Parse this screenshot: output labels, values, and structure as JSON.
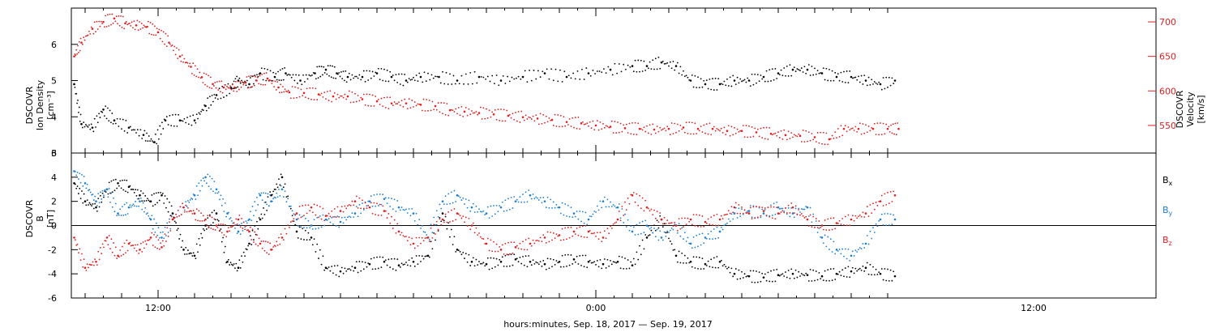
{
  "chart_data": [
    {
      "type": "scatter",
      "panel": "top",
      "y_label_lines": [
        "DSCOVR",
        "Ion Density",
        "[cm⁻³]"
      ],
      "y2_label_lines": [
        "DSCOVR",
        "Velocity",
        "[km/s]"
      ],
      "ylim": [
        3,
        7
      ],
      "y_ticks": [
        3,
        4,
        5,
        6
      ],
      "y2lim": [
        510,
        720
      ],
      "y2_ticks": [
        550,
        600,
        650,
        700
      ],
      "grid": false,
      "legend": "none",
      "series": [
        {
          "axis": "left",
          "color": "#000000",
          "x": [
            9.7,
            9.9,
            10.2,
            10.5,
            10.8,
            11.2,
            11.6,
            11.9,
            12.2,
            12.6,
            13.0,
            13.3,
            13.6,
            14.0,
            14.2,
            14.5,
            14.8,
            15.2,
            15.5,
            15.9,
            16.3,
            16.6,
            16.9,
            17.2,
            17.6,
            18.0,
            18.4,
            18.8,
            19.2,
            19.7,
            20.2,
            20.8,
            21.4,
            22.0,
            22.6,
            23.2,
            23.8,
            0.4,
            1.0,
            1.4,
            1.8,
            2.2,
            2.6,
            3.0,
            3.4,
            3.8,
            4.2,
            4.6,
            5.0,
            5.4,
            5.8,
            6.2,
            6.6,
            7.0,
            7.4,
            7.8,
            8.2
          ],
          "values": [
            4.9,
            3.8,
            3.7,
            4.2,
            3.9,
            3.7,
            3.5,
            3.3,
            3.9,
            3.9,
            3.9,
            4.3,
            4.6,
            4.8,
            5.0,
            4.9,
            5.2,
            5.1,
            5.2,
            5.0,
            5.2,
            5.3,
            5.2,
            5.1,
            5.1,
            5.2,
            5.1,
            5.0,
            5.1,
            5.1,
            5.0,
            5.1,
            5.0,
            5.1,
            5.2,
            5.1,
            5.2,
            5.3,
            5.4,
            5.4,
            5.5,
            5.4,
            5.0,
            4.9,
            4.9,
            5.0,
            5.0,
            5.1,
            5.2,
            5.3,
            5.3,
            5.2,
            5.1,
            5.1,
            5.0,
            4.9,
            5.0
          ]
        },
        {
          "axis": "right",
          "color": "#e02020",
          "x": [
            9.7,
            9.9,
            10.2,
            10.5,
            10.8,
            11.1,
            11.4,
            11.7,
            12.0,
            12.3,
            12.6,
            12.9,
            13.2,
            13.5,
            13.8,
            14.1,
            14.4,
            14.7,
            15.0,
            15.3,
            15.6,
            16.0,
            16.4,
            16.8,
            17.2,
            17.6,
            18.0,
            18.4,
            18.8,
            19.2,
            19.6,
            20.0,
            20.4,
            20.8,
            21.2,
            21.6,
            22.0,
            22.4,
            22.8,
            23.2,
            23.6,
            0.0,
            0.4,
            0.8,
            1.2,
            1.6,
            2.0,
            2.4,
            2.8,
            3.2,
            3.6,
            4.0,
            4.4,
            4.8,
            5.2,
            5.6,
            6.0,
            6.4,
            6.8,
            7.2,
            7.6,
            8.0,
            8.3
          ],
          "values": [
            650,
            670,
            690,
            700,
            705,
            698,
            695,
            693,
            685,
            670,
            650,
            635,
            620,
            610,
            605,
            605,
            612,
            615,
            618,
            605,
            598,
            597,
            595,
            592,
            592,
            588,
            585,
            582,
            582,
            580,
            578,
            572,
            570,
            568,
            566,
            564,
            562,
            560,
            558,
            555,
            553,
            550,
            548,
            546,
            545,
            544,
            545,
            547,
            545,
            545,
            542,
            542,
            540,
            538,
            536,
            535,
            533,
            530,
            545,
            545,
            545,
            545,
            545
          ]
        }
      ]
    },
    {
      "type": "scatter",
      "panel": "bottom",
      "y_label_lines": [
        "DSCOVR",
        "B",
        "[nT]"
      ],
      "ylim": [
        -6,
        6
      ],
      "y_ticks": [
        -6,
        -4,
        -2,
        0,
        2,
        4,
        6
      ],
      "zero_line": true,
      "grid": false,
      "legend": "right",
      "series": [
        {
          "name": "B",
          "subscript": "x",
          "color": "#000000",
          "x": [
            9.7,
            10.0,
            10.3,
            10.6,
            10.9,
            11.2,
            11.5,
            11.8,
            12.1,
            12.4,
            12.7,
            13.0,
            13.3,
            13.6,
            13.9,
            14.2,
            14.5,
            14.8,
            15.1,
            15.4,
            15.8,
            16.2,
            16.6,
            17.0,
            17.4,
            17.8,
            18.2,
            18.6,
            19.0,
            19.4,
            19.8,
            20.2,
            20.6,
            21.0,
            21.4,
            21.8,
            22.2,
            22.6,
            23.0,
            23.4,
            23.8,
            0.2,
            0.6,
            1.0,
            1.4,
            1.8,
            2.2,
            2.6,
            3.0,
            3.4,
            3.8,
            4.2,
            4.6,
            5.0,
            5.4,
            5.8,
            6.2,
            6.6,
            7.0,
            7.4,
            7.8,
            8.2
          ],
          "values": [
            3.5,
            2.0,
            1.5,
            3.0,
            3.5,
            3.2,
            2.5,
            2.0,
            2.5,
            1.0,
            -2.0,
            -2.5,
            0.0,
            1.0,
            -3.0,
            -3.5,
            -1.5,
            0.5,
            2.5,
            4.0,
            -0.5,
            -1.0,
            -3.5,
            -3.8,
            -3.5,
            -3.2,
            -3.0,
            -3.3,
            -3.0,
            -2.5,
            1.0,
            -2.0,
            -3.0,
            -3.2,
            -3.0,
            -2.8,
            -3.0,
            -3.2,
            -3.0,
            -2.8,
            -3.0,
            -3.2,
            -3.0,
            -3.3,
            -1.0,
            0.5,
            -2.5,
            -3.0,
            -3.2,
            -3.0,
            -4.0,
            -4.2,
            -4.3,
            -4.1,
            -4.0,
            -4.1,
            -4.2,
            -4.0,
            -3.8,
            -3.5,
            -4.0,
            -4.2
          ]
        },
        {
          "name": "B",
          "subscript": "y",
          "color": "#1a7fd4",
          "x": [
            9.7,
            10.0,
            10.3,
            10.6,
            10.9,
            11.2,
            11.5,
            11.8,
            12.1,
            12.4,
            12.7,
            13.0,
            13.3,
            13.6,
            13.9,
            14.2,
            14.5,
            14.8,
            15.1,
            15.4,
            15.8,
            16.2,
            16.6,
            17.0,
            17.4,
            17.8,
            18.2,
            18.6,
            19.0,
            19.4,
            19.8,
            20.2,
            20.6,
            21.0,
            21.4,
            21.8,
            22.2,
            22.6,
            23.0,
            23.4,
            23.8,
            0.2,
            0.6,
            1.0,
            1.4,
            1.8,
            2.2,
            2.6,
            3.0,
            3.4,
            3.8,
            4.2,
            4.6,
            5.0,
            5.4,
            5.8,
            6.2,
            6.6,
            7.0,
            7.4,
            7.8,
            8.2
          ],
          "values": [
            4.5,
            3.5,
            2.0,
            3.0,
            1.0,
            1.5,
            2.0,
            0.5,
            -1.0,
            0.5,
            1.5,
            2.5,
            4.0,
            3.0,
            1.0,
            -0.5,
            0.5,
            2.5,
            2.0,
            3.0,
            0.5,
            0.0,
            0.5,
            0.3,
            1.0,
            2.0,
            2.2,
            1.5,
            1.0,
            -1.0,
            2.0,
            2.5,
            1.5,
            1.0,
            1.5,
            2.0,
            2.5,
            2.0,
            1.5,
            1.0,
            0.5,
            2.0,
            1.5,
            -0.5,
            0.0,
            -1.0,
            0.0,
            -1.5,
            -1.0,
            -0.5,
            1.0,
            1.2,
            1.0,
            1.5,
            1.0,
            1.5,
            -1.0,
            -2.0,
            -2.5,
            -1.5,
            0.5,
            0.5
          ]
        },
        {
          "name": "B",
          "subscript": "z",
          "color": "#e02020",
          "x": [
            9.7,
            10.0,
            10.3,
            10.6,
            10.9,
            11.2,
            11.5,
            11.8,
            12.1,
            12.4,
            12.7,
            13.0,
            13.3,
            13.6,
            13.9,
            14.2,
            14.5,
            14.8,
            15.1,
            15.4,
            15.8,
            16.2,
            16.6,
            17.0,
            17.4,
            17.8,
            18.2,
            18.6,
            19.0,
            19.4,
            19.8,
            20.2,
            20.6,
            21.0,
            21.4,
            21.8,
            22.2,
            22.6,
            23.0,
            23.4,
            23.8,
            0.2,
            0.6,
            1.0,
            1.4,
            1.8,
            2.2,
            2.6,
            3.0,
            3.4,
            3.8,
            4.2,
            4.6,
            5.0,
            5.4,
            5.8,
            6.2,
            6.6,
            7.0,
            7.4,
            7.8,
            8.2
          ],
          "values": [
            -1.0,
            -3.5,
            -3.0,
            -1.0,
            -2.5,
            -1.5,
            -2.0,
            -1.0,
            -1.8,
            0.5,
            1.5,
            1.0,
            0.5,
            0.0,
            -0.5,
            0.5,
            -0.5,
            -1.5,
            -2.0,
            -1.0,
            1.0,
            1.5,
            0.8,
            1.2,
            2.0,
            1.5,
            1.2,
            -0.5,
            -1.5,
            -1.0,
            0.5,
            1.0,
            0.0,
            -1.5,
            -2.0,
            -1.8,
            -1.5,
            -1.0,
            -0.8,
            -0.5,
            -0.5,
            -1.0,
            0.5,
            2.5,
            1.5,
            0.5,
            0.0,
            0.5,
            0.3,
            0.5,
            1.5,
            1.0,
            1.2,
            1.0,
            1.5,
            0.5,
            0.0,
            0.2,
            0.5,
            1.0,
            2.0,
            2.5
          ]
        }
      ]
    }
  ],
  "x_axis": {
    "title": "hours:minutes, Sep. 18, 2017 — Sep. 19, 2017",
    "tick_labels": [
      "12:00",
      "0:00",
      "12:00"
    ]
  }
}
